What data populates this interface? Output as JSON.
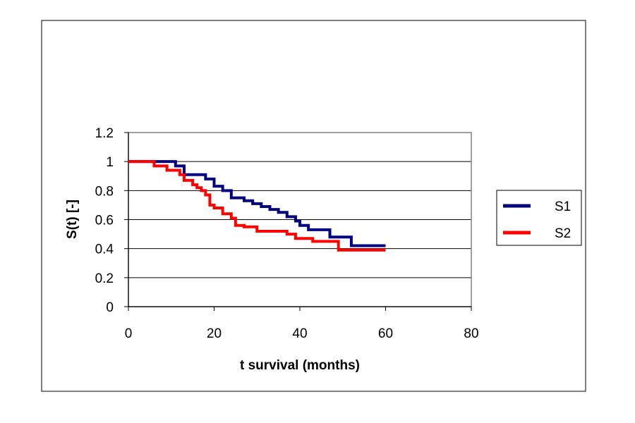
{
  "chart_data": {
    "type": "line",
    "step": true,
    "title": "",
    "xlabel": "t survival (months)",
    "ylabel": "S(t) [-]",
    "xlim": [
      0,
      80
    ],
    "ylim": [
      0,
      1.2
    ],
    "x_ticks": [
      "0",
      "20",
      "40",
      "60",
      "80"
    ],
    "y_ticks": [
      "0",
      "0.2",
      "0.4",
      "0.6",
      "0.8",
      "1",
      "1.2"
    ],
    "grid": "horizontal",
    "legend_position": "right",
    "series": [
      {
        "name": "S1",
        "color": "#000080",
        "x": [
          0,
          11,
          13,
          18,
          20,
          22,
          24,
          27,
          29,
          31,
          33,
          35,
          37,
          39,
          40,
          42,
          47,
          52,
          60
        ],
        "y": [
          1,
          0.97,
          0.91,
          0.88,
          0.83,
          0.8,
          0.75,
          0.73,
          0.71,
          0.69,
          0.67,
          0.65,
          0.62,
          0.59,
          0.56,
          0.53,
          0.48,
          0.42,
          0.42
        ]
      },
      {
        "name": "S2",
        "color": "#ff0000",
        "x": [
          0,
          6,
          9,
          12,
          13,
          15,
          16,
          17,
          18,
          19,
          20,
          22,
          24,
          25,
          27,
          30,
          37,
          39,
          43,
          49,
          60
        ],
        "y": [
          1,
          0.97,
          0.94,
          0.91,
          0.87,
          0.84,
          0.82,
          0.8,
          0.77,
          0.7,
          0.68,
          0.64,
          0.61,
          0.56,
          0.55,
          0.52,
          0.5,
          0.47,
          0.45,
          0.39,
          0.39
        ]
      }
    ]
  }
}
